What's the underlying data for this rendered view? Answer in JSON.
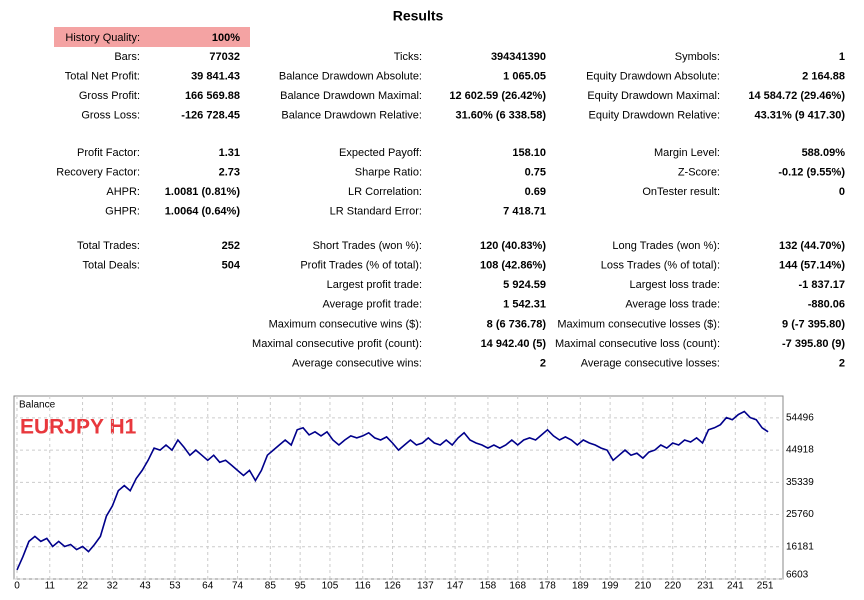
{
  "results": {
    "title": "Results",
    "history_quality": {
      "label": "History Quality:",
      "value": "100%"
    },
    "sections": [
      {
        "columns": [
          [
            {
              "label": "Bars:",
              "value": "77032"
            },
            {
              "label": "Total Net Profit:",
              "value": "39 841.43"
            },
            {
              "label": "Gross Profit:",
              "value": "166 569.88"
            },
            {
              "label": "Gross Loss:",
              "value": "-126 728.45"
            }
          ],
          [
            {
              "label": "Ticks:",
              "value": "394341390"
            },
            {
              "label": "Balance Drawdown Absolute:",
              "value": "1 065.05"
            },
            {
              "label": "Balance Drawdown Maximal:",
              "value": "12 602.59 (26.42%)"
            },
            {
              "label": "Balance Drawdown Relative:",
              "value": "31.60% (6 338.58)"
            }
          ],
          [
            {
              "label": "Symbols:",
              "value": "1"
            },
            {
              "label": "Equity Drawdown Absolute:",
              "value": "2 164.88"
            },
            {
              "label": "Equity Drawdown Maximal:",
              "value": "14 584.72 (29.46%)"
            },
            {
              "label": "Equity Drawdown Relative:",
              "value": "43.31% (9 417.30)"
            }
          ]
        ]
      },
      {
        "columns": [
          [
            {
              "label": "Profit Factor:",
              "value": "1.31"
            },
            {
              "label": "Recovery Factor:",
              "value": "2.73"
            },
            {
              "label": "AHPR:",
              "value": "1.0081 (0.81%)"
            },
            {
              "label": "GHPR:",
              "value": "1.0064 (0.64%)"
            }
          ],
          [
            {
              "label": "Expected Payoff:",
              "value": "158.10"
            },
            {
              "label": "Sharpe Ratio:",
              "value": "0.75"
            },
            {
              "label": "LR Correlation:",
              "value": "0.69"
            },
            {
              "label": "LR Standard Error:",
              "value": "7 418.71"
            }
          ],
          [
            {
              "label": "Margin Level:",
              "value": "588.09%"
            },
            {
              "label": "Z-Score:",
              "value": "-0.12 (9.55%)"
            },
            {
              "label": "OnTester result:",
              "value": "0"
            }
          ]
        ]
      },
      {
        "columns": [
          [
            {
              "label": "Total Trades:",
              "value": "252"
            },
            {
              "label": "Total Deals:",
              "value": "504"
            }
          ],
          [
            {
              "label": "Short Trades (won %):",
              "value": "120 (40.83%)"
            },
            {
              "label": "Profit Trades (% of total):",
              "value": "108 (42.86%)"
            },
            {
              "label": "Largest profit trade:",
              "value": "5 924.59"
            },
            {
              "label": "Average profit trade:",
              "value": "1 542.31"
            },
            {
              "label": "Maximum consecutive wins ($):",
              "value": "8 (6 736.78)"
            },
            {
              "label": "Maximal consecutive profit (count):",
              "value": "14 942.40 (5)"
            },
            {
              "label": "Average consecutive wins:",
              "value": "2"
            }
          ],
          [
            {
              "label": "Long Trades (won %):",
              "value": "132 (44.70%)"
            },
            {
              "label": "Loss Trades (% of total):",
              "value": "144 (57.14%)"
            },
            {
              "label": "Largest loss trade:",
              "value": "-1 837.17"
            },
            {
              "label": "Average loss trade:",
              "value": "-880.06"
            },
            {
              "label": "Maximum consecutive losses ($):",
              "value": "9 (-7 395.80)"
            },
            {
              "label": "Maximal consecutive loss (count):",
              "value": "-7 395.80 (9)"
            },
            {
              "label": "Average consecutive losses:",
              "value": "2"
            }
          ]
        ]
      }
    ]
  },
  "chart_data": {
    "type": "line",
    "title": "EURJPY H1",
    "x": [
      0,
      2,
      4,
      6,
      8,
      10,
      12,
      14,
      16,
      18,
      20,
      22,
      24,
      26,
      28,
      30,
      32,
      34,
      36,
      38,
      40,
      42,
      44,
      46,
      48,
      50,
      52,
      54,
      56,
      58,
      60,
      62,
      64,
      66,
      68,
      70,
      72,
      74,
      76,
      78,
      80,
      82,
      84,
      86,
      88,
      90,
      92,
      94,
      96,
      98,
      100,
      102,
      104,
      106,
      108,
      110,
      112,
      114,
      116,
      118,
      120,
      122,
      124,
      126,
      128,
      130,
      132,
      134,
      136,
      138,
      140,
      142,
      144,
      146,
      148,
      150,
      152,
      154,
      156,
      158,
      160,
      162,
      164,
      166,
      168,
      170,
      172,
      174,
      176,
      178,
      180,
      182,
      184,
      186,
      188,
      190,
      192,
      194,
      196,
      198,
      200,
      202,
      204,
      206,
      208,
      210,
      212,
      214,
      216,
      218,
      220,
      222,
      224,
      226,
      228,
      230,
      232,
      234,
      236,
      238,
      240,
      242,
      244,
      246,
      248,
      250,
      252
    ],
    "series": [
      {
        "name": "Balance",
        "color": "#00008b",
        "values": [
          9320,
          13240,
          17770,
          19270,
          17770,
          18670,
          16260,
          17770,
          16260,
          16860,
          15350,
          16260,
          14750,
          16860,
          19270,
          25310,
          28330,
          32850,
          34360,
          32850,
          36470,
          38890,
          41900,
          45520,
          44920,
          46430,
          44920,
          47930,
          45820,
          43410,
          44920,
          43410,
          41900,
          43410,
          41300,
          41900,
          40390,
          38890,
          37380,
          38890,
          35870,
          38890,
          43410,
          44920,
          46430,
          47930,
          46430,
          50950,
          51560,
          49450,
          50350,
          49150,
          50350,
          47930,
          46430,
          47930,
          49150,
          48540,
          49150,
          50050,
          48540,
          47930,
          48840,
          47030,
          44920,
          46430,
          47930,
          46430,
          47030,
          48540,
          47030,
          46430,
          47930,
          46430,
          48540,
          50050,
          47930,
          47030,
          46430,
          45520,
          46430,
          45520,
          46430,
          47930,
          46430,
          47930,
          48540,
          47930,
          49450,
          50950,
          49150,
          47930,
          48840,
          47930,
          46430,
          47930,
          47030,
          46430,
          45520,
          44920,
          41900,
          43410,
          44920,
          43410,
          44010,
          42500,
          44310,
          44920,
          46430,
          45520,
          47030,
          46430,
          47930,
          47330,
          48540,
          47030,
          50950,
          51560,
          52460,
          54570,
          53970,
          55480,
          56380,
          54570,
          53970,
          51560,
          50350
        ]
      }
    ],
    "xlim": [
      -1,
      257
    ],
    "ylim": [
      6603,
      61000
    ],
    "xticks": [
      0,
      11,
      22,
      32,
      43,
      53,
      64,
      74,
      85,
      95,
      105,
      116,
      126,
      137,
      147,
      158,
      168,
      178,
      189,
      199,
      210,
      220,
      231,
      241,
      251
    ],
    "yticks": [
      6603,
      16181,
      25760,
      35339,
      44918,
      54496
    ],
    "grid": true
  }
}
